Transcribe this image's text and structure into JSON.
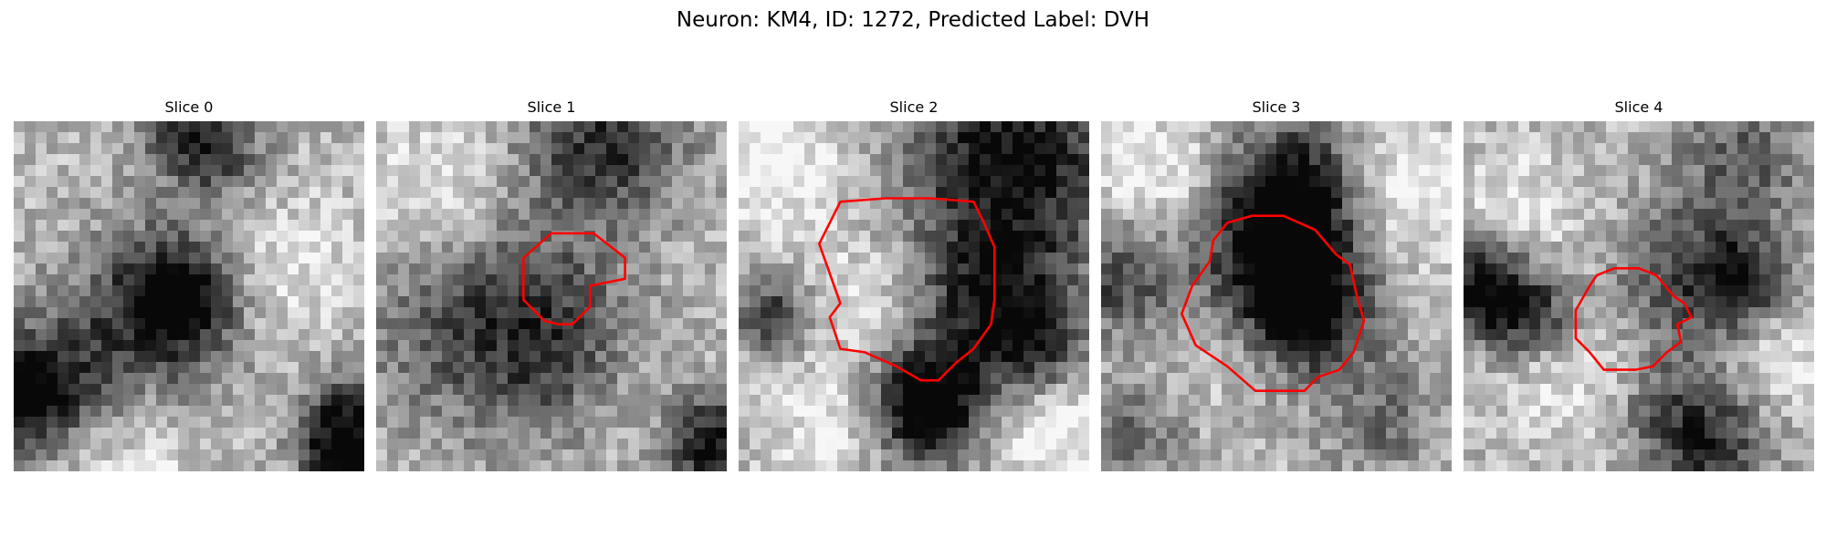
{
  "figure": {
    "title": "Neuron: KM4, ID: 1272, Predicted Label: DVH"
  },
  "colors": {
    "contour": "#ff0000",
    "background": "#ffffff"
  },
  "grid": {
    "rows": 32,
    "cols": 32
  },
  "panels": [
    {
      "title": "Slice 0",
      "dark_spots": [
        [
          0.46,
          0.52,
          0.16,
          0.75
        ],
        [
          0.48,
          0.5,
          0.07,
          0.35
        ],
        [
          0.02,
          0.8,
          0.1,
          0.55
        ],
        [
          0.12,
          0.74,
          0.16,
          0.45
        ],
        [
          0.96,
          0.84,
          0.1,
          0.55
        ],
        [
          0.93,
          0.97,
          0.08,
          0.6
        ],
        [
          0.5,
          0.03,
          0.1,
          0.45
        ],
        [
          0.6,
          0.1,
          0.1,
          0.3
        ]
      ],
      "light_spots": [
        [
          0.72,
          0.45,
          0.16,
          0.25
        ],
        [
          0.3,
          0.95,
          0.16,
          0.2
        ]
      ],
      "contour": []
    },
    {
      "title": "Slice 1",
      "dark_spots": [
        [
          0.65,
          0.06,
          0.16,
          0.55
        ],
        [
          0.45,
          0.55,
          0.18,
          0.35
        ],
        [
          0.95,
          0.92,
          0.1,
          0.7
        ],
        [
          0.2,
          0.6,
          0.2,
          0.25
        ],
        [
          0.55,
          0.75,
          0.2,
          0.2
        ]
      ],
      "light_spots": [
        [
          0.15,
          0.2,
          0.14,
          0.22
        ],
        [
          0.75,
          0.85,
          0.15,
          0.15
        ]
      ],
      "contour": [
        [
          0.42,
          0.45
        ],
        [
          0.42,
          0.51
        ],
        [
          0.48,
          0.57
        ],
        [
          0.52,
          0.58
        ],
        [
          0.56,
          0.58
        ],
        [
          0.61,
          0.53
        ],
        [
          0.61,
          0.47
        ],
        [
          0.71,
          0.45
        ],
        [
          0.71,
          0.39
        ],
        [
          0.62,
          0.32
        ],
        [
          0.5,
          0.32
        ],
        [
          0.42,
          0.39
        ]
      ]
    },
    {
      "title": "Slice 2",
      "dark_spots": [
        [
          0.78,
          0.1,
          0.22,
          0.7
        ],
        [
          0.72,
          0.52,
          0.16,
          0.55
        ],
        [
          0.53,
          0.75,
          0.12,
          0.4
        ],
        [
          0.55,
          0.85,
          0.1,
          0.6
        ],
        [
          0.1,
          0.55,
          0.08,
          0.5
        ],
        [
          0.85,
          0.65,
          0.1,
          0.4
        ]
      ],
      "light_spots": [
        [
          0.1,
          0.1,
          0.14,
          0.3
        ],
        [
          0.38,
          0.5,
          0.14,
          0.2
        ],
        [
          0.9,
          0.88,
          0.12,
          0.3
        ],
        [
          0.25,
          0.85,
          0.12,
          0.2
        ]
      ],
      "contour": [
        [
          0.29,
          0.23
        ],
        [
          0.23,
          0.35
        ],
        [
          0.29,
          0.52
        ],
        [
          0.26,
          0.56
        ],
        [
          0.29,
          0.65
        ],
        [
          0.36,
          0.66
        ],
        [
          0.45,
          0.7
        ],
        [
          0.52,
          0.74
        ],
        [
          0.57,
          0.74
        ],
        [
          0.62,
          0.69
        ],
        [
          0.67,
          0.65
        ],
        [
          0.72,
          0.58
        ],
        [
          0.73,
          0.51
        ],
        [
          0.73,
          0.36
        ],
        [
          0.7,
          0.29
        ],
        [
          0.67,
          0.23
        ],
        [
          0.55,
          0.22
        ],
        [
          0.42,
          0.22
        ]
      ]
    },
    {
      "title": "Slice 3",
      "dark_spots": [
        [
          0.55,
          0.2,
          0.14,
          0.7
        ],
        [
          0.5,
          0.42,
          0.16,
          0.65
        ],
        [
          0.6,
          0.55,
          0.12,
          0.55
        ],
        [
          0.05,
          0.45,
          0.12,
          0.45
        ],
        [
          0.1,
          0.9,
          0.1,
          0.3
        ],
        [
          0.8,
          0.85,
          0.12,
          0.3
        ]
      ],
      "light_spots": [
        [
          0.85,
          0.2,
          0.14,
          0.3
        ],
        [
          0.15,
          0.15,
          0.14,
          0.25
        ],
        [
          0.35,
          0.62,
          0.12,
          0.15
        ]
      ],
      "contour": [
        [
          0.26,
          0.47
        ],
        [
          0.23,
          0.55
        ],
        [
          0.27,
          0.64
        ],
        [
          0.36,
          0.7
        ],
        [
          0.44,
          0.77
        ],
        [
          0.51,
          0.77
        ],
        [
          0.58,
          0.77
        ],
        [
          0.62,
          0.73
        ],
        [
          0.68,
          0.71
        ],
        [
          0.72,
          0.66
        ],
        [
          0.75,
          0.57
        ],
        [
          0.73,
          0.5
        ],
        [
          0.71,
          0.41
        ],
        [
          0.67,
          0.38
        ],
        [
          0.61,
          0.31
        ],
        [
          0.52,
          0.27
        ],
        [
          0.43,
          0.27
        ],
        [
          0.36,
          0.29
        ],
        [
          0.32,
          0.34
        ],
        [
          0.31,
          0.4
        ]
      ]
    },
    {
      "title": "Slice 4",
      "dark_spots": [
        [
          0.05,
          0.48,
          0.1,
          0.75
        ],
        [
          0.2,
          0.55,
          0.08,
          0.5
        ],
        [
          0.65,
          0.45,
          0.14,
          0.5
        ],
        [
          0.8,
          0.45,
          0.08,
          0.45
        ],
        [
          0.7,
          0.93,
          0.12,
          0.55
        ],
        [
          0.8,
          0.1,
          0.14,
          0.35
        ],
        [
          0.55,
          0.8,
          0.12,
          0.25
        ]
      ],
      "light_spots": [
        [
          0.15,
          0.25,
          0.12,
          0.2
        ],
        [
          0.35,
          0.75,
          0.14,
          0.2
        ],
        [
          0.92,
          0.7,
          0.1,
          0.2
        ]
      ],
      "contour": [
        [
          0.32,
          0.54
        ],
        [
          0.32,
          0.62
        ],
        [
          0.36,
          0.66
        ],
        [
          0.4,
          0.71
        ],
        [
          0.49,
          0.71
        ],
        [
          0.54,
          0.7
        ],
        [
          0.58,
          0.66
        ],
        [
          0.62,
          0.63
        ],
        [
          0.61,
          0.58
        ],
        [
          0.65,
          0.56
        ],
        [
          0.63,
          0.52
        ],
        [
          0.6,
          0.5
        ],
        [
          0.55,
          0.44
        ],
        [
          0.5,
          0.42
        ],
        [
          0.43,
          0.42
        ],
        [
          0.38,
          0.44
        ],
        [
          0.36,
          0.47
        ]
      ]
    }
  ]
}
